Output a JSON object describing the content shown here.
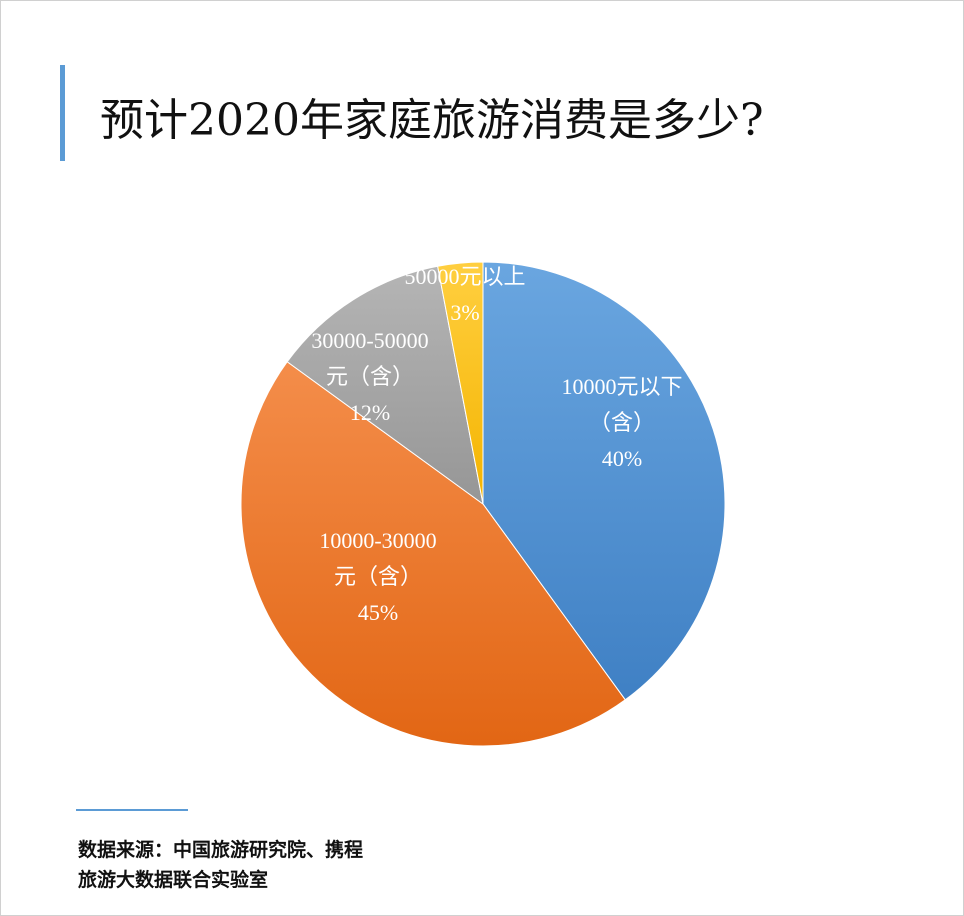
{
  "title": "预计2020年家庭旅游消费是多少?",
  "source": {
    "line1": "数据来源：中国旅游研究院、携程",
    "line2": "旅游大数据联合实验室"
  },
  "chart_data": {
    "type": "pie",
    "title": "预计2020年家庭旅游消费是多少?",
    "slices": [
      {
        "label_lines": [
          "10000元以下",
          "（含）"
        ],
        "value": 40,
        "value_label": "40%",
        "color_top": "#6aa6e0",
        "color_bottom": "#3f80c4"
      },
      {
        "label_lines": [
          "10000-30000",
          "元（含）"
        ],
        "value": 45,
        "value_label": "45%",
        "color_top": "#f48d4a",
        "color_bottom": "#e26614"
      },
      {
        "label_lines": [
          "30000-50000",
          "元（含）"
        ],
        "value": 12,
        "value_label": "12%",
        "color_top": "#b5b5b5",
        "color_bottom": "#969696"
      },
      {
        "label_lines": [
          "50000元以上"
        ],
        "value": 3,
        "value_label": "3%",
        "color_top": "#ffcf40",
        "color_bottom": "#f4b400"
      }
    ]
  }
}
